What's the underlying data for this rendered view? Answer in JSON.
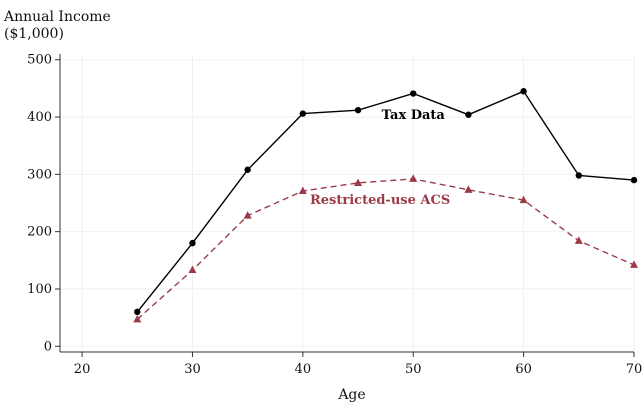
{
  "chart_data": {
    "type": "line",
    "title": "",
    "ylabel": "Annual Income",
    "ylabel_unit": "($1,000)",
    "xlabel": "Age",
    "xlim": [
      18,
      70
    ],
    "ylim": [
      -10,
      510
    ],
    "xticks": [
      20,
      30,
      40,
      50,
      60,
      70
    ],
    "yticks": [
      0,
      100,
      200,
      300,
      400,
      500
    ],
    "grid": true,
    "x": [
      25,
      30,
      35,
      40,
      45,
      50,
      55,
      60,
      65,
      70
    ],
    "series": [
      {
        "name": "Tax Data",
        "values": [
          60,
          180,
          308,
          406,
          412,
          441,
          404,
          445,
          298,
          290
        ],
        "color": "#000000",
        "style": "solid",
        "marker": "circle"
      },
      {
        "name": "Restricted-use ACS",
        "values": [
          47,
          133,
          228,
          271,
          285,
          292,
          273,
          255,
          184,
          142
        ],
        "color": "#9b3b49",
        "style": "dashed",
        "marker": "triangle"
      }
    ],
    "annotations": [
      {
        "text": "Tax Data",
        "x": 50,
        "y": 397,
        "series": 0
      },
      {
        "text": "Restricted-use ACS",
        "x": 47,
        "y": 248,
        "series": 1
      }
    ]
  }
}
